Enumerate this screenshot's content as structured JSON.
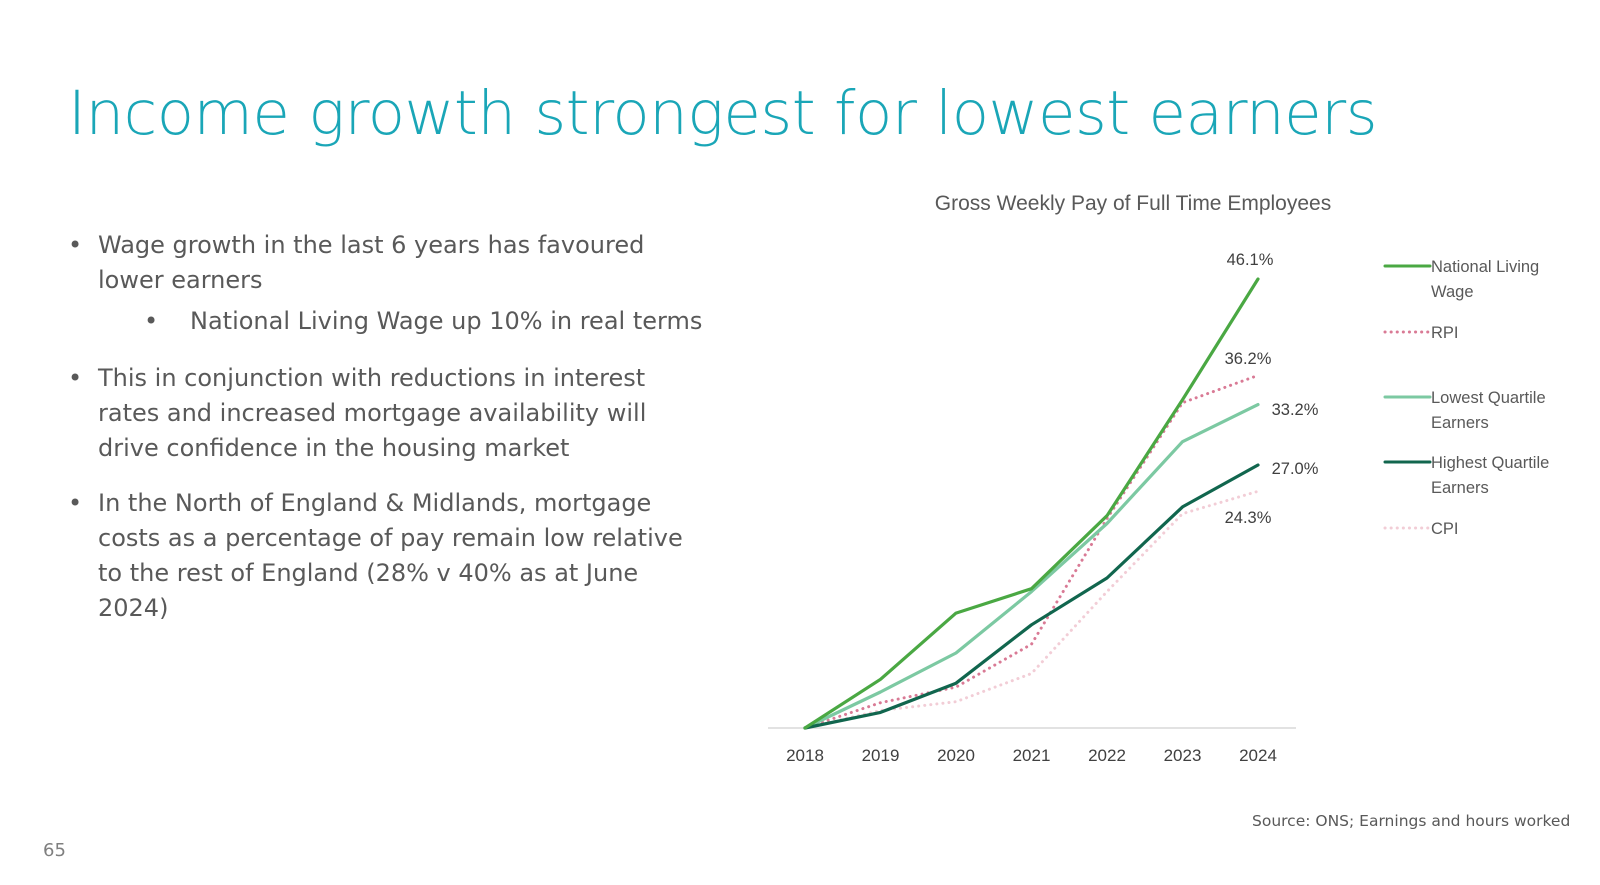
{
  "slide": {
    "title": "Income growth strongest for lowest earners",
    "bullets": [
      "Wage growth in the last 6 years has favoured lower earners",
      "National Living Wage up 10% in real terms",
      "This in conjunction with reductions in interest rates and increased mortgage availability will drive confidence in the housing market",
      "In the North of England & Midlands, mortgage costs as a percentage of pay remain low relative to the rest of England (28% v 40% as at June 2024)"
    ],
    "source": "Source: ONS; Earnings and hours worked",
    "page_number": "65"
  },
  "chart_data": {
    "type": "line",
    "title": "Gross Weekly Pay of Full Time Employees",
    "xlabel": "",
    "ylabel": "",
    "categories": [
      "2018",
      "2019",
      "2020",
      "2021",
      "2022",
      "2023",
      "2024"
    ],
    "ylim": [
      0,
      50
    ],
    "grid": false,
    "legend_position": "right",
    "series": [
      {
        "name": "National Living Wage",
        "color": "#4aa843",
        "style": "solid",
        "values": [
          0,
          5.0,
          11.8,
          14.3,
          21.8,
          33.7,
          46.1
        ],
        "end_label": "46.1%"
      },
      {
        "name": "RPI",
        "color": "#d97a95",
        "style": "dotted",
        "values": [
          0,
          2.6,
          4.2,
          8.6,
          21.5,
          33.4,
          36.2
        ],
        "end_label": "36.2%"
      },
      {
        "name": "Lowest Quartile Earners",
        "color": "#7cc9a2",
        "style": "solid",
        "values": [
          0,
          3.7,
          7.7,
          14.0,
          21.0,
          29.4,
          33.2
        ],
        "end_label": "33.2%"
      },
      {
        "name": "Highest Quartile Earners",
        "color": "#11664e",
        "style": "solid",
        "values": [
          0,
          1.6,
          4.6,
          10.6,
          15.4,
          22.7,
          27.0
        ],
        "end_label": "27.0%"
      },
      {
        "name": "CPI",
        "color": "#f2cdd6",
        "style": "dotted",
        "values": [
          0,
          1.8,
          2.7,
          5.6,
          14.0,
          22.0,
          24.3
        ],
        "end_label": "24.3%"
      }
    ]
  }
}
